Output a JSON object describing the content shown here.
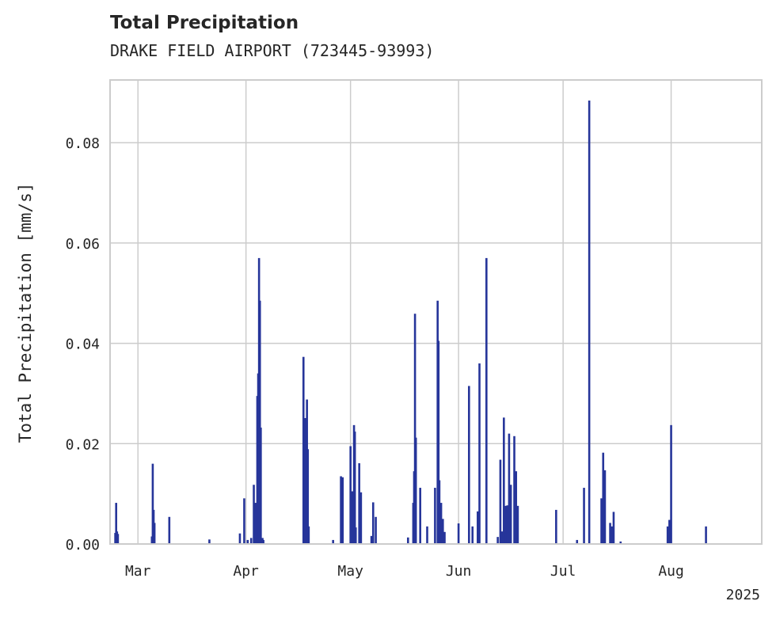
{
  "chart_data": {
    "type": "bar",
    "title": "Total Precipitation",
    "subtitle": "DRAKE FIELD AIRPORT (723445-93993)",
    "xlabel": "",
    "ylabel": "Total Precipitation [mm/s]",
    "year_label": "2025",
    "xlim": [
      "2025-02-21",
      "2025-08-27"
    ],
    "ylim": [
      0,
      0.0925
    ],
    "grid": true,
    "colors": {
      "bar": "#26359a",
      "grid": "#cccccc",
      "spine": "#cccccc"
    },
    "x_ticks": [
      {
        "date": "2025-03-01",
        "label": "Mar"
      },
      {
        "date": "2025-04-01",
        "label": "Apr"
      },
      {
        "date": "2025-05-01",
        "label": "May"
      },
      {
        "date": "2025-06-01",
        "label": "Jun"
      },
      {
        "date": "2025-07-01",
        "label": "Jul"
      },
      {
        "date": "2025-08-01",
        "label": "Aug"
      }
    ],
    "y_ticks": [
      {
        "value": 0,
        "label": "0.00"
      },
      {
        "value": 0.02,
        "label": "0.02"
      },
      {
        "value": 0.04,
        "label": "0.04"
      },
      {
        "value": 0.06,
        "label": "0.06"
      },
      {
        "value": 0.08,
        "label": "0.08"
      }
    ],
    "series": [
      {
        "x": [
          "2025-02-22 12:00",
          "2025-02-22 18:00",
          "2025-02-23 00:00",
          "2025-02-23 06:00",
          "2025-03-05 00:00",
          "2025-03-05 06:00",
          "2025-03-05 12:00",
          "2025-03-05 18:00",
          "2025-03-10 00:00",
          "2025-03-21 12:00",
          "2025-03-30 06:00",
          "2025-03-31 12:00",
          "2025-04-01 12:00",
          "2025-04-02 12:00",
          "2025-04-03 06:00",
          "2025-04-03 18:00",
          "2025-04-04 06:00",
          "2025-04-04 12:00",
          "2025-04-04 18:00",
          "2025-04-05 00:00",
          "2025-04-05 06:00",
          "2025-04-05 12:00",
          "2025-04-05 18:00",
          "2025-04-06 00:00",
          "2025-04-17 12:00",
          "2025-04-18 00:00",
          "2025-04-18 06:00",
          "2025-04-18 12:00",
          "2025-04-18 18:00",
          "2025-04-19 00:00",
          "2025-04-26 00:00",
          "2025-04-28 06:00",
          "2025-04-28 18:00",
          "2025-05-01 00:00",
          "2025-05-01 12:00",
          "2025-05-02 00:00",
          "2025-05-02 06:00",
          "2025-05-02 12:00",
          "2025-05-03 12:00",
          "2025-05-04 00:00",
          "2025-05-07 00:00",
          "2025-05-07 12:00",
          "2025-05-08 06:00",
          "2025-05-17 12:00",
          "2025-05-19 00:00",
          "2025-05-19 06:00",
          "2025-05-19 12:00",
          "2025-05-19 18:00",
          "2025-05-21 00:00",
          "2025-05-23 00:00",
          "2025-05-25 06:00",
          "2025-05-26 00:00",
          "2025-05-26 06:00",
          "2025-05-26 12:00",
          "2025-05-27 00:00",
          "2025-05-27 12:00",
          "2025-05-28 00:00",
          "2025-06-01 00:00",
          "2025-06-04 00:00",
          "2025-06-05 00:00",
          "2025-06-06 12:00",
          "2025-06-07 00:00",
          "2025-06-09 00:00",
          "2025-06-12 06:00",
          "2025-06-13 00:00",
          "2025-06-13 12:00",
          "2025-06-14 00:00",
          "2025-06-14 12:00",
          "2025-06-15 00:00",
          "2025-06-15 12:00",
          "2025-06-16 00:00",
          "2025-06-17 00:00",
          "2025-06-17 12:00",
          "2025-06-18 00:00",
          "2025-06-29 00:00",
          "2025-07-05 00:00",
          "2025-07-07 00:00",
          "2025-07-08 12:00",
          "2025-07-12 00:00",
          "2025-07-12 12:00",
          "2025-07-13 00:00",
          "2025-07-14 12:00",
          "2025-07-15 00:00",
          "2025-07-15 12:00",
          "2025-07-17 12:00",
          "2025-07-31 00:00",
          "2025-07-31 12:00",
          "2025-08-01 00:00",
          "2025-08-11 00:00"
        ],
        "values": [
          0.0022,
          0.0082,
          0.0025,
          0.002,
          0.0015,
          0.016,
          0.0068,
          0.0042,
          0.0054,
          0.0009,
          0.0021,
          0.0091,
          0.0008,
          0.0012,
          0.0118,
          0.0082,
          0.0295,
          0.034,
          0.057,
          0.0485,
          0.0232,
          0.001,
          0.0012,
          0.0008,
          0.0373,
          0.0251,
          0.0092,
          0.0288,
          0.0189,
          0.0035,
          0.0008,
          0.0135,
          0.0133,
          0.0195,
          0.0105,
          0.0237,
          0.0224,
          0.0033,
          0.0161,
          0.0103,
          0.0016,
          0.0083,
          0.0054,
          0.0013,
          0.0082,
          0.0145,
          0.0459,
          0.0212,
          0.0112,
          0.0035,
          0.0112,
          0.0485,
          0.0405,
          0.0127,
          0.0082,
          0.005,
          0.0024,
          0.0041,
          0.0315,
          0.0035,
          0.0065,
          0.036,
          0.057,
          0.0014,
          0.0168,
          0.0025,
          0.0252,
          0.0076,
          0.0077,
          0.022,
          0.0118,
          0.0215,
          0.0145,
          0.0076,
          0.0068,
          0.0008,
          0.0112,
          0.0884,
          0.0091,
          0.0182,
          0.0147,
          0.0042,
          0.0035,
          0.0064,
          0.0005,
          0.0035,
          0.0048,
          0.0237,
          0.0035
        ]
      }
    ]
  }
}
